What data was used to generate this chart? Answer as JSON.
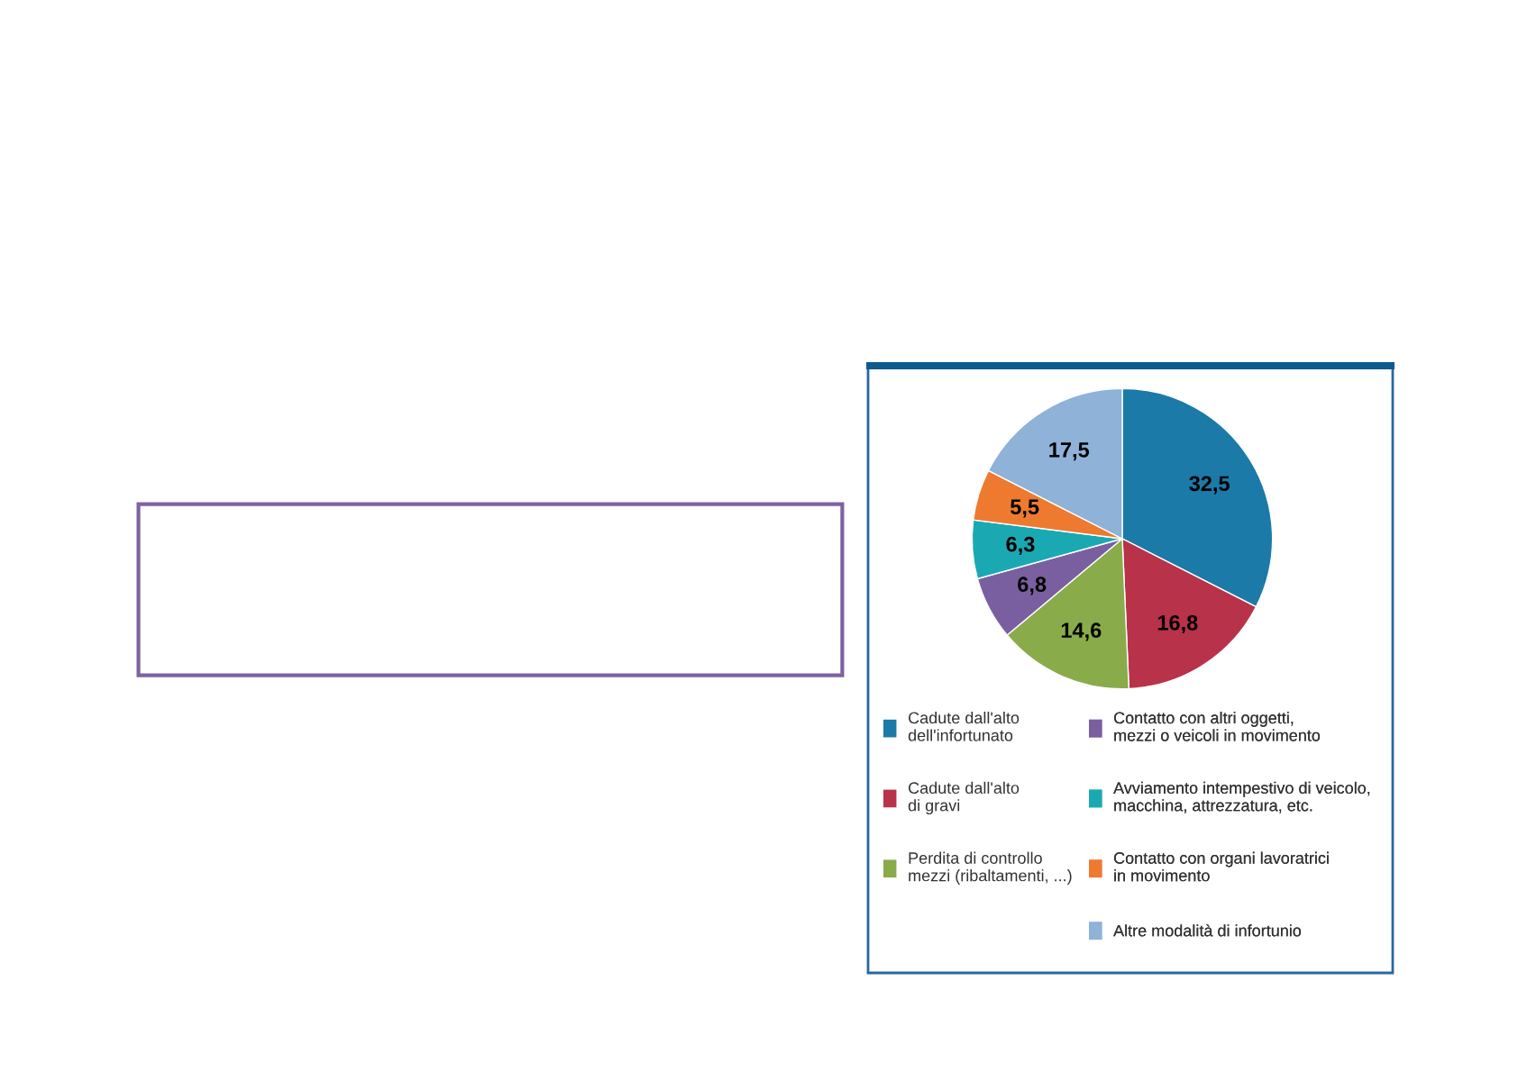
{
  "chart_data": {
    "type": "pie",
    "categories": [
      "Cadute dall'alto\ndell'infortunato",
      "Cadute dall'alto\ndi gravi",
      "Perdita di controllo\nmezzi (ribaltamenti, ...)",
      "Contatto con altri oggetti,\nmezzi o veicoli in movimento",
      "Avviamento intempestivo di veicolo,\nmacchina, attrezzatura, etc.",
      "Contatto con organi lavoratrici\nin movimento",
      "Altre modalità di infortunio"
    ],
    "values": [
      32.5,
      16.8,
      14.6,
      6.8,
      6.3,
      5.5,
      17.5
    ],
    "colors": [
      "#1b7aa8",
      "#b8324a",
      "#8aab4a",
      "#7a5fa0",
      "#1aa9b3",
      "#ee7a30",
      "#8fb2d8"
    ],
    "value_labels": [
      "32,5",
      "16,8",
      "14,6",
      "6,8",
      "6,3",
      "5,5",
      "17,5"
    ],
    "legend": "bottom"
  }
}
